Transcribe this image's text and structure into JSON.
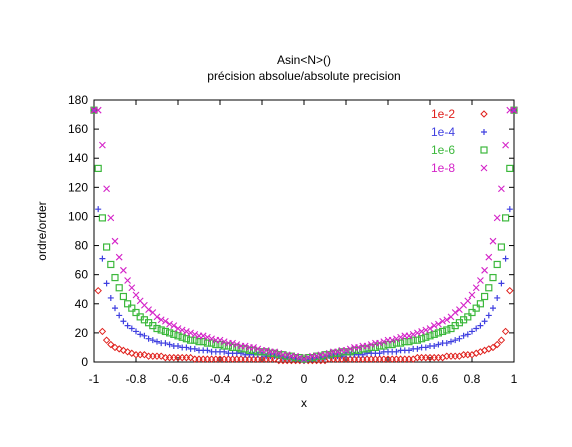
{
  "chart_data": {
    "type": "scatter",
    "title": "Asin<N>()",
    "subtitle": "précision absolue/absolute precision",
    "xlabel": "x",
    "ylabel": "ordre/order",
    "xlim": [
      -1,
      1
    ],
    "ylim": [
      0,
      180
    ],
    "xticks": [
      -1,
      -0.8,
      -0.6,
      -0.4,
      -0.2,
      0,
      0.2,
      0.4,
      0.6,
      0.8,
      1
    ],
    "xtick_labels": [
      "-1",
      "-0.8",
      "-0.6",
      "-0.4",
      "-0.2",
      "0",
      "0.2",
      "0.4",
      "0.6",
      "0.8",
      "1"
    ],
    "yticks": [
      0,
      20,
      40,
      60,
      80,
      100,
      120,
      140,
      160,
      180
    ],
    "ytick_labels": [
      "0",
      "20",
      "40",
      "60",
      "80",
      "100",
      "120",
      "140",
      "160",
      "180"
    ],
    "grid": false,
    "legend_position": "top-right",
    "series": [
      {
        "name": "1e-2",
        "marker": "diamond",
        "color": "#e0201c",
        "x": [
          -1,
          -0.98,
          -0.96,
          -0.94,
          -0.92,
          -0.9,
          -0.88,
          -0.86,
          -0.84,
          -0.82,
          -0.8,
          -0.78,
          -0.76,
          -0.74,
          -0.72,
          -0.7,
          -0.68,
          -0.66,
          -0.64,
          -0.62,
          -0.6,
          -0.58,
          -0.56,
          -0.54,
          -0.52,
          -0.5,
          -0.48,
          -0.46,
          -0.44,
          -0.42,
          -0.4,
          -0.38,
          -0.36,
          -0.34,
          -0.32,
          -0.3,
          -0.28,
          -0.26,
          -0.24,
          -0.22,
          -0.2,
          -0.18,
          -0.16,
          -0.14,
          -0.12,
          -0.1,
          -0.08,
          -0.06,
          -0.04,
          -0.02,
          0,
          0.02,
          0.04,
          0.06,
          0.08,
          0.1,
          0.12,
          0.14,
          0.16,
          0.18,
          0.2,
          0.22,
          0.24,
          0.26,
          0.28,
          0.3,
          0.32,
          0.34,
          0.36,
          0.38,
          0.4,
          0.42,
          0.44,
          0.46,
          0.48,
          0.5,
          0.52,
          0.54,
          0.56,
          0.58,
          0.6,
          0.62,
          0.64,
          0.66,
          0.68,
          0.7,
          0.72,
          0.74,
          0.76,
          0.78,
          0.8,
          0.82,
          0.84,
          0.86,
          0.88,
          0.9,
          0.92,
          0.94,
          0.96,
          0.98,
          1
        ],
        "y": [
          173,
          49,
          21,
          15,
          12,
          10,
          9,
          8,
          7,
          6,
          5,
          5,
          5,
          4,
          4,
          4,
          4,
          3,
          3,
          3,
          3,
          3,
          3,
          3,
          2,
          2,
          2,
          2,
          2,
          2,
          2,
          2,
          2,
          2,
          2,
          2,
          2,
          2,
          2,
          2,
          2,
          2,
          2,
          2,
          1,
          1,
          1,
          1,
          1,
          1,
          1,
          1,
          1,
          1,
          1,
          1,
          2,
          2,
          2,
          2,
          2,
          2,
          2,
          2,
          2,
          2,
          2,
          2,
          2,
          2,
          2,
          2,
          2,
          2,
          2,
          2,
          2,
          3,
          3,
          3,
          3,
          3,
          3,
          3,
          4,
          4,
          4,
          4,
          5,
          5,
          5,
          6,
          7,
          8,
          9,
          10,
          12,
          15,
          21,
          49,
          173
        ]
      },
      {
        "name": "1e-4",
        "marker": "plus",
        "color": "#3f3fe0",
        "x": [
          -1,
          -0.98,
          -0.96,
          -0.94,
          -0.92,
          -0.9,
          -0.88,
          -0.86,
          -0.84,
          -0.82,
          -0.8,
          -0.78,
          -0.76,
          -0.74,
          -0.72,
          -0.7,
          -0.68,
          -0.66,
          -0.64,
          -0.62,
          -0.6,
          -0.58,
          -0.56,
          -0.54,
          -0.52,
          -0.5,
          -0.48,
          -0.46,
          -0.44,
          -0.42,
          -0.4,
          -0.38,
          -0.36,
          -0.34,
          -0.32,
          -0.3,
          -0.28,
          -0.26,
          -0.24,
          -0.22,
          -0.2,
          -0.18,
          -0.16,
          -0.14,
          -0.12,
          -0.1,
          -0.08,
          -0.06,
          -0.04,
          -0.02,
          0,
          0.02,
          0.04,
          0.06,
          0.08,
          0.1,
          0.12,
          0.14,
          0.16,
          0.18,
          0.2,
          0.22,
          0.24,
          0.26,
          0.28,
          0.3,
          0.32,
          0.34,
          0.36,
          0.38,
          0.4,
          0.42,
          0.44,
          0.46,
          0.48,
          0.5,
          0.52,
          0.54,
          0.56,
          0.58,
          0.6,
          0.62,
          0.64,
          0.66,
          0.68,
          0.7,
          0.72,
          0.74,
          0.76,
          0.78,
          0.8,
          0.82,
          0.84,
          0.86,
          0.88,
          0.9,
          0.92,
          0.94,
          0.96,
          0.98,
          1
        ],
        "y": [
          173,
          105,
          71,
          54,
          44,
          37,
          32,
          28,
          25,
          23,
          21,
          19,
          18,
          16,
          15,
          14,
          13,
          13,
          12,
          11,
          11,
          10,
          10,
          9,
          9,
          8,
          8,
          8,
          7,
          7,
          7,
          7,
          6,
          6,
          6,
          6,
          5,
          5,
          5,
          5,
          5,
          4,
          4,
          4,
          4,
          3,
          3,
          3,
          2,
          2,
          1,
          2,
          2,
          3,
          3,
          3,
          4,
          4,
          4,
          4,
          5,
          5,
          5,
          5,
          5,
          6,
          6,
          6,
          6,
          7,
          7,
          7,
          7,
          8,
          8,
          8,
          9,
          9,
          10,
          10,
          11,
          11,
          12,
          13,
          13,
          14,
          15,
          16,
          18,
          19,
          21,
          23,
          25,
          28,
          32,
          37,
          44,
          54,
          71,
          105,
          173
        ]
      },
      {
        "name": "1e-6",
        "marker": "square",
        "color": "#3cb83c",
        "x": [
          -1,
          -0.98,
          -0.96,
          -0.94,
          -0.92,
          -0.9,
          -0.88,
          -0.86,
          -0.84,
          -0.82,
          -0.8,
          -0.78,
          -0.76,
          -0.74,
          -0.72,
          -0.7,
          -0.68,
          -0.66,
          -0.64,
          -0.62,
          -0.6,
          -0.58,
          -0.56,
          -0.54,
          -0.52,
          -0.5,
          -0.48,
          -0.46,
          -0.44,
          -0.42,
          -0.4,
          -0.38,
          -0.36,
          -0.34,
          -0.32,
          -0.3,
          -0.28,
          -0.26,
          -0.24,
          -0.22,
          -0.2,
          -0.18,
          -0.16,
          -0.14,
          -0.12,
          -0.1,
          -0.08,
          -0.06,
          -0.04,
          -0.02,
          0,
          0.02,
          0.04,
          0.06,
          0.08,
          0.1,
          0.12,
          0.14,
          0.16,
          0.18,
          0.2,
          0.22,
          0.24,
          0.26,
          0.28,
          0.3,
          0.32,
          0.34,
          0.36,
          0.38,
          0.4,
          0.42,
          0.44,
          0.46,
          0.48,
          0.5,
          0.52,
          0.54,
          0.56,
          0.58,
          0.6,
          0.62,
          0.64,
          0.66,
          0.68,
          0.7,
          0.72,
          0.74,
          0.76,
          0.78,
          0.8,
          0.82,
          0.84,
          0.86,
          0.88,
          0.9,
          0.92,
          0.94,
          0.96,
          0.98,
          1
        ],
        "y": [
          173,
          133,
          99,
          79,
          67,
          58,
          51,
          45,
          40,
          37,
          34,
          31,
          29,
          27,
          25,
          23,
          22,
          21,
          20,
          19,
          18,
          17,
          16,
          15,
          15,
          14,
          14,
          13,
          13,
          12,
          12,
          11,
          11,
          10,
          10,
          9,
          9,
          8,
          8,
          7,
          7,
          7,
          6,
          6,
          5,
          5,
          4,
          4,
          3,
          3,
          2,
          3,
          3,
          4,
          4,
          5,
          5,
          6,
          6,
          7,
          7,
          7,
          8,
          8,
          9,
          9,
          10,
          10,
          11,
          11,
          12,
          12,
          13,
          13,
          14,
          14,
          15,
          15,
          16,
          17,
          18,
          19,
          20,
          21,
          22,
          23,
          25,
          27,
          29,
          31,
          34,
          37,
          40,
          45,
          51,
          58,
          67,
          79,
          99,
          133,
          173
        ]
      },
      {
        "name": "1e-8",
        "marker": "cross",
        "color": "#d424c8",
        "x": [
          -1,
          -0.98,
          -0.96,
          -0.94,
          -0.92,
          -0.9,
          -0.88,
          -0.86,
          -0.84,
          -0.82,
          -0.8,
          -0.78,
          -0.76,
          -0.74,
          -0.72,
          -0.7,
          -0.68,
          -0.66,
          -0.64,
          -0.62,
          -0.6,
          -0.58,
          -0.56,
          -0.54,
          -0.52,
          -0.5,
          -0.48,
          -0.46,
          -0.44,
          -0.42,
          -0.4,
          -0.38,
          -0.36,
          -0.34,
          -0.32,
          -0.3,
          -0.28,
          -0.26,
          -0.24,
          -0.22,
          -0.2,
          -0.18,
          -0.16,
          -0.14,
          -0.12,
          -0.1,
          -0.08,
          -0.06,
          -0.04,
          -0.02,
          0,
          0.02,
          0.04,
          0.06,
          0.08,
          0.1,
          0.12,
          0.14,
          0.16,
          0.18,
          0.2,
          0.22,
          0.24,
          0.26,
          0.28,
          0.3,
          0.32,
          0.34,
          0.36,
          0.38,
          0.4,
          0.42,
          0.44,
          0.46,
          0.48,
          0.5,
          0.52,
          0.54,
          0.56,
          0.58,
          0.6,
          0.62,
          0.64,
          0.66,
          0.68,
          0.7,
          0.72,
          0.74,
          0.76,
          0.78,
          0.8,
          0.82,
          0.84,
          0.86,
          0.88,
          0.9,
          0.92,
          0.94,
          0.96,
          0.98,
          1
        ],
        "y": [
          173,
          173,
          149,
          119,
          99,
          83,
          72,
          63,
          56,
          51,
          46,
          42,
          39,
          36,
          34,
          31,
          29,
          28,
          26,
          25,
          23,
          22,
          21,
          20,
          19,
          18,
          18,
          17,
          16,
          15,
          15,
          14,
          13,
          13,
          12,
          11,
          11,
          10,
          10,
          9,
          8,
          8,
          7,
          7,
          6,
          5,
          5,
          4,
          4,
          3,
          2,
          3,
          4,
          4,
          5,
          5,
          6,
          7,
          7,
          8,
          8,
          9,
          10,
          10,
          11,
          11,
          12,
          13,
          13,
          14,
          15,
          15,
          16,
          17,
          18,
          18,
          19,
          20,
          21,
          22,
          23,
          25,
          26,
          28,
          29,
          31,
          34,
          36,
          39,
          42,
          46,
          51,
          56,
          63,
          72,
          83,
          99,
          119,
          149,
          173,
          173
        ]
      }
    ]
  }
}
